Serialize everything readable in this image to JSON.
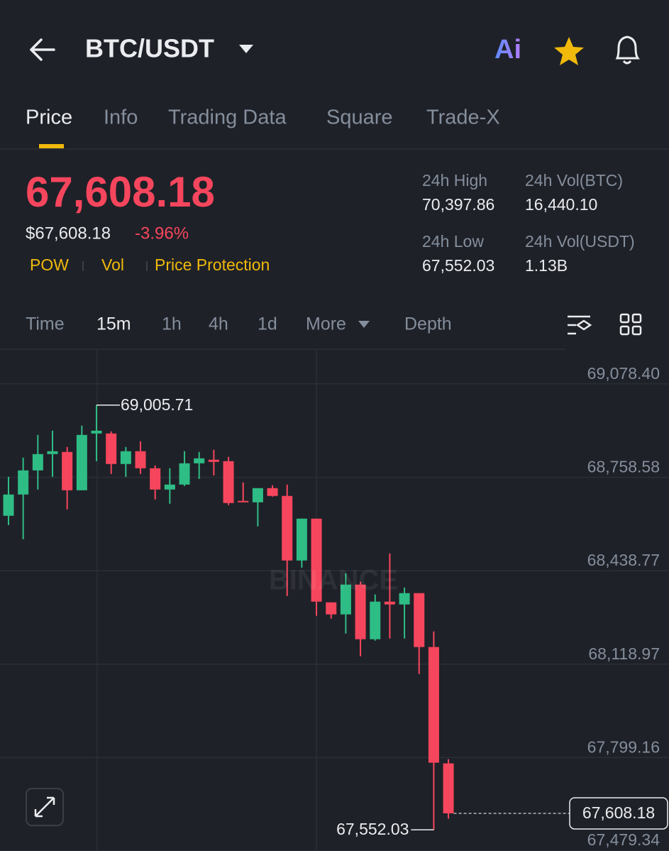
{
  "header": {
    "pair": "BTC/USDT",
    "ai_label": "Ai"
  },
  "tabs": [
    "Price",
    "Info",
    "Trading Data",
    "Square",
    "Trade-X"
  ],
  "ticker": {
    "price": "67,608.18",
    "usd_price": "$67,608.18",
    "change": "-3.96%",
    "tags": [
      "POW",
      "Vol",
      "Price Protection"
    ],
    "stats": [
      {
        "label": "24h High",
        "value": "70,397.86"
      },
      {
        "label": "24h Vol(BTC)",
        "value": "16,440.10"
      },
      {
        "label": "24h Low",
        "value": "67,552.03"
      },
      {
        "label": "24h Vol(USDT)",
        "value": "1.13B"
      }
    ]
  },
  "intervals": [
    "Time",
    "15m",
    "1h",
    "4h",
    "1d",
    "More",
    "Depth"
  ],
  "chart_data": {
    "type": "candlestick",
    "watermark": "BINANCE",
    "up_color": "#2ebd85",
    "down_color": "#f6465d",
    "open": [
      68626.7,
      68699.6,
      68782.1,
      68838.0,
      68845.3,
      68714.1,
      68908.4,
      68908.4,
      68804.0,
      68847.7,
      68789.4,
      68716.6,
      68733.6,
      68806.4,
      68818.6,
      68813.7,
      68677.7,
      68672.9,
      68721.4,
      68694.7,
      68473.7,
      68617.0,
      68330.4,
      68289.2,
      68391.2,
      68204.2,
      68332.9,
      68323.2,
      68362.0,
      68177.5,
      67779.2
    ],
    "close": [
      68699.6,
      68782.1,
      68838.0,
      68847.7,
      68714.1,
      68903.6,
      68918.1,
      68804.0,
      68847.7,
      68789.4,
      68716.6,
      68733.6,
      68806.4,
      68823.4,
      68811.3,
      68670.4,
      68672.9,
      68721.4,
      68694.7,
      68473.7,
      68617.0,
      68332.9,
      68289.2,
      68391.2,
      68204.2,
      68332.9,
      68323.2,
      68362.0,
      68177.5,
      67781.6,
      67608.18
    ],
    "high": [
      68760.3,
      68825.8,
      68903.6,
      68918.1,
      68862.3,
      68935.1,
      69005.71,
      68915.7,
      68862.3,
      68881.7,
      68799.1,
      68789.4,
      68847.7,
      68845.3,
      68852.6,
      68828.3,
      68740.9,
      68721.4,
      68731.1,
      68733.6,
      68617.0,
      68617.0,
      68330.4,
      68430.0,
      68400.9,
      68357.2,
      68498.0,
      68381.4,
      68362.0,
      68230.9,
      67793.8
    ],
    "low": [
      68595.1,
      68546.6,
      68716.6,
      68760.3,
      68648.6,
      68714.1,
      68813.7,
      68770.0,
      68760.3,
      68770.0,
      68682.6,
      68668.0,
      68728.7,
      68753.0,
      68765.1,
      68663.1,
      68672.9,
      68590.3,
      68692.3,
      68352.3,
      68449.4,
      68284.3,
      68274.6,
      68223.6,
      68145.9,
      68199.3,
      68206.6,
      68206.6,
      68085.2,
      67552.03,
      67589.8
    ],
    "max_label": "69,005.71",
    "min_label": "67,552.03",
    "last_price_label": "67,608.18",
    "ylim": [
      67479.34,
      69197
    ],
    "yticks": [
      {
        "value": 69078.4,
        "label": "69,078.40"
      },
      {
        "value": 68758.58,
        "label": "68,758.58"
      },
      {
        "value": 68438.77,
        "label": "68,438.77"
      },
      {
        "value": 68118.97,
        "label": "68,118.97"
      },
      {
        "value": 67799.16,
        "label": "67,799.16"
      },
      {
        "value": 67479.34,
        "label": "67,479.34"
      }
    ],
    "grid": true
  }
}
